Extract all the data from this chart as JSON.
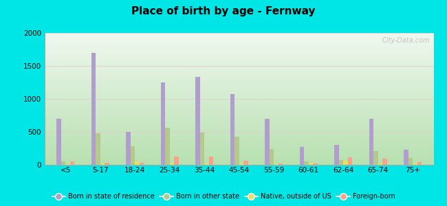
{
  "title": "Place of birth by age - Fernway",
  "categories": [
    "<5",
    "5-17",
    "18-24",
    "25-34",
    "35-44",
    "45-54",
    "55-59",
    "60-61",
    "62-64",
    "65-74",
    "75+"
  ],
  "series": {
    "Born in state of residence": [
      700,
      1700,
      500,
      1250,
      1330,
      1070,
      700,
      270,
      300,
      700,
      230
    ],
    "Born in other state": [
      50,
      480,
      280,
      560,
      490,
      430,
      240,
      50,
      70,
      210,
      100
    ],
    "Native, outside of US": [
      10,
      20,
      50,
      20,
      20,
      20,
      15,
      30,
      60,
      20,
      20
    ],
    "Foreign-born": [
      50,
      30,
      30,
      130,
      120,
      60,
      20,
      20,
      110,
      90,
      40
    ]
  },
  "series_colors": {
    "Born in state of residence": "#b09fcc",
    "Born in other state": "#b5c98a",
    "Native, outside of US": "#e8e060",
    "Foreign-born": "#f4a48a"
  },
  "ylim": [
    0,
    2000
  ],
  "yticks": [
    0,
    500,
    1000,
    1500,
    2000
  ],
  "outer_background": "#00e5e5",
  "watermark": "City-Data.com",
  "gradient_top": "#f0f8f0",
  "gradient_bottom": "#b8e0b0"
}
